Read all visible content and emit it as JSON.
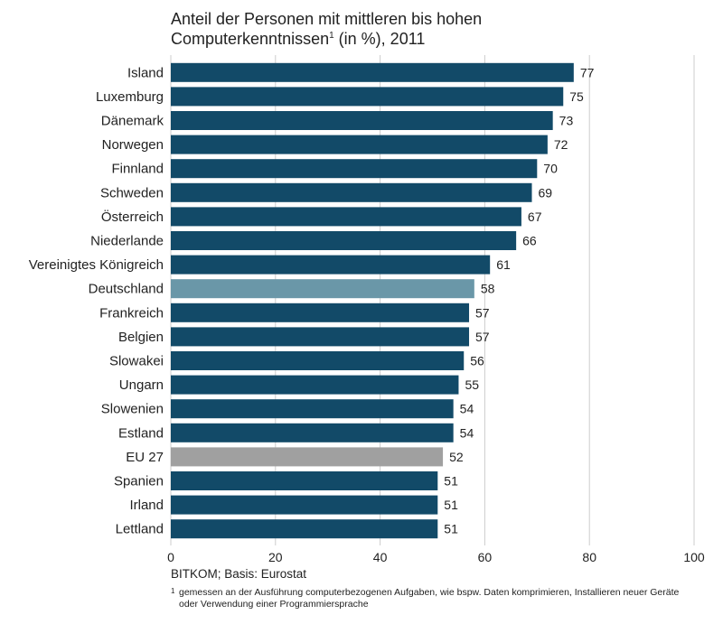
{
  "title": {
    "line1": "Anteil der Personen mit mittleren bis hohen",
    "line2_pre": "Computerkenntnissen",
    "line2_sup": "1",
    "line2_post": " (in %), 2011"
  },
  "source": "BITKOM; Basis: Eurostat",
  "footnote": {
    "mark": "1",
    "text": "gemessen an der Ausführung computerbezogenen Aufgaben, wie bspw. Daten komprimieren, Installieren neuer Geräte oder Verwendung einer Programmiersprache"
  },
  "colors": {
    "default": "#124a68",
    "highlight": "#6a97a8",
    "eu": "#a0a0a0",
    "grid": "#cccccc"
  },
  "chart_data": {
    "type": "bar",
    "orientation": "horizontal",
    "title": "Anteil der Personen mit mittleren bis hohen Computerkenntnissen¹ (in %), 2011",
    "xlim": [
      0,
      100
    ],
    "xticks": [
      0,
      20,
      40,
      60,
      80,
      100
    ],
    "grid": true,
    "categories": [
      "Island",
      "Luxemburg",
      "Dänemark",
      "Norwegen",
      "Finnland",
      "Schweden",
      "Österreich",
      "Niederlande",
      "Vereinigtes Königreich",
      "Deutschland",
      "Frankreich",
      "Belgien",
      "Slowakei",
      "Ungarn",
      "Slowenien",
      "Estland",
      "EU 27",
      "Spanien",
      "Irland",
      "Lettland"
    ],
    "values": [
      77,
      75,
      73,
      72,
      70,
      69,
      67,
      66,
      61,
      58,
      57,
      57,
      56,
      55,
      54,
      54,
      52,
      51,
      51,
      51
    ],
    "highlight": {
      "Deutschland": "highlight",
      "EU 27": "eu"
    }
  }
}
